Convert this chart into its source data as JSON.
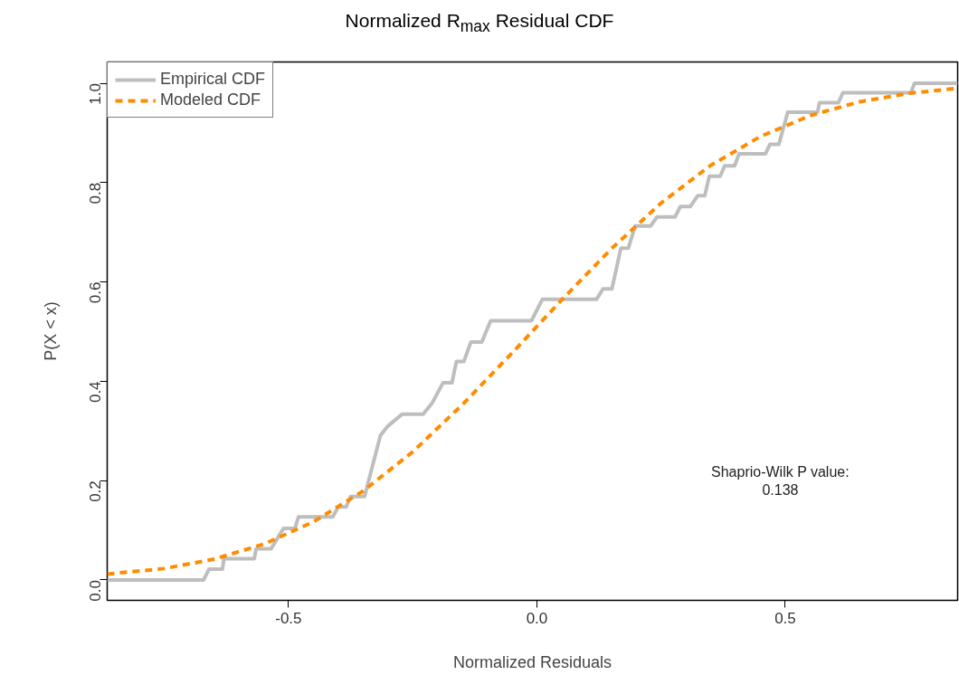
{
  "chart_data": {
    "type": "line",
    "title": "Normalized R$_{max}$ Residual CDF",
    "xlabel": "Normalized Residuals",
    "ylabel": "P(X < x)",
    "xlim": [
      -0.865,
      0.847
    ],
    "ylim": [
      -0.041,
      1.043
    ],
    "xticks": [
      {
        "value": -0.5,
        "label": "-0.5"
      },
      {
        "value": 0,
        "label": "0.0"
      },
      {
        "value": 0.5,
        "label": "0.5"
      }
    ],
    "yticks": [
      {
        "value": 0,
        "label": "0.0"
      },
      {
        "value": 0.2,
        "label": "0.2"
      },
      {
        "value": 0.4,
        "label": "0.4"
      },
      {
        "value": 0.6,
        "label": "0.6"
      },
      {
        "value": 0.8,
        "label": "0.8"
      },
      {
        "value": 1,
        "label": "1.0"
      }
    ],
    "grid": false,
    "legend": "top left",
    "annotations": [
      "Shaprio-Wilk P value:\n0.138"
    ],
    "series": [
      {
        "name": "Empirical CDF",
        "color": "#bebebe",
        "line_style": "solid",
        "x": [
          -0.865,
          -0.671,
          -0.66,
          -0.633,
          -0.63,
          -0.569,
          -0.565,
          -0.535,
          -0.51,
          -0.487,
          -0.48,
          -0.411,
          -0.4,
          -0.384,
          -0.375,
          -0.347,
          -0.315,
          -0.3,
          -0.271,
          -0.229,
          -0.211,
          -0.189,
          -0.171,
          -0.162,
          -0.147,
          -0.133,
          -0.111,
          -0.093,
          -0.011,
          0.011,
          0.12,
          0.133,
          0.151,
          0.169,
          0.184,
          0.198,
          0.229,
          0.242,
          0.278,
          0.289,
          0.309,
          0.324,
          0.338,
          0.347,
          0.369,
          0.378,
          0.398,
          0.407,
          0.46,
          0.469,
          0.487,
          0.505,
          0.565,
          0.569,
          0.607,
          0.616,
          0.753,
          0.76,
          0.847
        ],
        "values": [
          0,
          0,
          0.022,
          0.022,
          0.043,
          0.043,
          0.063,
          0.063,
          0.104,
          0.104,
          0.127,
          0.127,
          0.147,
          0.147,
          0.168,
          0.168,
          0.291,
          0.31,
          0.334,
          0.334,
          0.356,
          0.397,
          0.397,
          0.44,
          0.44,
          0.479,
          0.479,
          0.522,
          0.522,
          0.565,
          0.565,
          0.586,
          0.586,
          0.668,
          0.668,
          0.713,
          0.713,
          0.731,
          0.731,
          0.752,
          0.752,
          0.774,
          0.774,
          0.813,
          0.813,
          0.834,
          0.834,
          0.858,
          0.858,
          0.877,
          0.877,
          0.942,
          0.942,
          0.961,
          0.961,
          0.981,
          0.981,
          1.0,
          1.0
        ]
      },
      {
        "name": "Modeled CDF",
        "color": "#ff8c00",
        "line_style": "dashed",
        "x": [
          -0.865,
          -0.75,
          -0.65,
          -0.55,
          -0.45,
          -0.35,
          -0.25,
          -0.15,
          -0.05,
          0.05,
          0.15,
          0.25,
          0.35,
          0.45,
          0.55,
          0.65,
          0.75,
          0.847
        ],
        "values": [
          0.012,
          0.023,
          0.042,
          0.072,
          0.117,
          0.179,
          0.258,
          0.353,
          0.457,
          0.564,
          0.667,
          0.759,
          0.835,
          0.893,
          0.935,
          0.963,
          0.98,
          0.99
        ]
      }
    ]
  }
}
